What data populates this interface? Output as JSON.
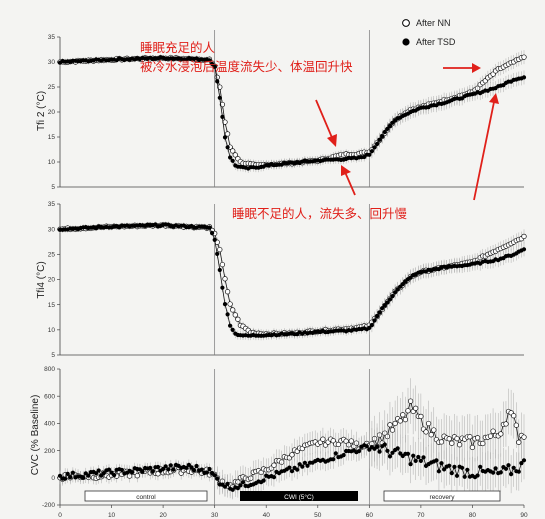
{
  "legend": {
    "nn": "After NN",
    "tsd": "After TSD"
  },
  "annotations": {
    "top_line1": "睡眠充足的人",
    "top_line2": "被冷水浸泡后温度流失少、体温回升快",
    "bottom": "睡眠不足的人，流失多、回升慢"
  },
  "phases": {
    "control": "control",
    "cwi": "CWI (5°C)",
    "recovery": "recovery"
  },
  "colors": {
    "nn_marker": "#ffffff",
    "tsd_marker": "#000000",
    "annotation": "#e0201a",
    "errorbar": "#999999"
  },
  "chart_data": [
    {
      "type": "line",
      "ylabel": "Tfi 2 (°C)",
      "ylim": [
        5,
        35
      ],
      "yticks": [
        "35",
        "30",
        "25",
        "20",
        "15",
        "10",
        "5"
      ],
      "xlim": [
        0,
        90
      ],
      "series": [
        {
          "name": "After NN",
          "x": [
            0,
            10,
            20,
            29,
            30,
            31,
            32,
            33,
            35,
            38,
            40,
            45,
            50,
            55,
            58,
            60,
            62,
            65,
            68,
            70,
            75,
            80,
            85,
            88,
            90
          ],
          "values": [
            30,
            30.5,
            30.8,
            30.5,
            29,
            25,
            18,
            13,
            10,
            9.3,
            9.5,
            9.8,
            10.3,
            11.5,
            11.7,
            12,
            14.5,
            18.5,
            20.5,
            21,
            22.5,
            24,
            28.5,
            30,
            31
          ]
        },
        {
          "name": "After TSD",
          "x": [
            0,
            10,
            20,
            29,
            30,
            31,
            32,
            33,
            34,
            36,
            38,
            40,
            45,
            50,
            55,
            58,
            60,
            62,
            65,
            68,
            70,
            75,
            80,
            85,
            88,
            90
          ],
          "values": [
            30,
            30.5,
            30.8,
            30.5,
            29,
            23,
            15,
            11,
            9.3,
            8.7,
            8.9,
            9.3,
            9.8,
            10.3,
            10.6,
            10.8,
            11.5,
            14.5,
            18.5,
            20,
            20.8,
            22,
            23.5,
            25,
            26.5,
            27
          ]
        }
      ]
    },
    {
      "type": "line",
      "ylabel": "Tfi4 (°C)",
      "ylim": [
        5,
        35
      ],
      "yticks": [
        "35",
        "30",
        "25",
        "20",
        "15",
        "10",
        "5"
      ],
      "xlim": [
        0,
        90
      ],
      "series": [
        {
          "name": "After NN",
          "x": [
            0,
            10,
            20,
            29,
            30,
            31,
            32,
            33,
            35,
            37,
            40,
            45,
            50,
            55,
            58,
            60,
            62,
            65,
            68,
            70,
            75,
            80,
            85,
            88,
            90
          ],
          "values": [
            30,
            30.5,
            30.8,
            30.3,
            29,
            26,
            20,
            15,
            11,
            9.5,
            9.2,
            9.3,
            9.8,
            10.2,
            10.5,
            10.8,
            13.5,
            17.5,
            20.5,
            21.5,
            22.5,
            23.5,
            26,
            27.5,
            28.5
          ]
        },
        {
          "name": "After TSD",
          "x": [
            0,
            10,
            20,
            29,
            30,
            31,
            32,
            33,
            34,
            36,
            40,
            45,
            50,
            55,
            58,
            60,
            62,
            65,
            68,
            70,
            75,
            80,
            85,
            88,
            90
          ],
          "values": [
            30,
            30.5,
            30.8,
            30.3,
            28,
            22,
            15,
            11,
            9.2,
            8.8,
            9,
            9.2,
            9.6,
            9.8,
            10,
            10.3,
            13.5,
            17.5,
            20.5,
            21.5,
            22.5,
            23,
            24,
            25,
            26
          ]
        }
      ]
    },
    {
      "type": "line",
      "ylabel": "CVC (% Baseline)",
      "ylim": [
        -200,
        800
      ],
      "yticks": [
        "800",
        "600",
        "400",
        "200",
        "0",
        "-200"
      ],
      "xlim": [
        0,
        90
      ],
      "xticks": [
        "0",
        "10",
        "20",
        "30",
        "40",
        "50",
        "60",
        "70",
        "80",
        "90"
      ],
      "series": [
        {
          "name": "After NN",
          "x": [
            0,
            10,
            20,
            25,
            29,
            31,
            33,
            36,
            40,
            45,
            50,
            55,
            58,
            60,
            62,
            65,
            67,
            68,
            70,
            72,
            75,
            80,
            85,
            87,
            88,
            89,
            90
          ],
          "values": [
            10,
            20,
            50,
            60,
            40,
            -20,
            -60,
            0,
            60,
            180,
            260,
            270,
            230,
            260,
            280,
            380,
            450,
            520,
            420,
            340,
            270,
            260,
            320,
            480,
            420,
            300,
            330
          ]
        },
        {
          "name": "After TSD",
          "x": [
            0,
            10,
            20,
            25,
            29,
            31,
            33,
            36,
            40,
            45,
            50,
            55,
            58,
            60,
            62,
            65,
            70,
            75,
            80,
            85,
            88,
            90
          ],
          "values": [
            10,
            40,
            70,
            80,
            50,
            -30,
            -70,
            -50,
            0,
            60,
            120,
            180,
            210,
            230,
            220,
            180,
            120,
            70,
            40,
            30,
            60,
            100
          ]
        }
      ]
    }
  ]
}
